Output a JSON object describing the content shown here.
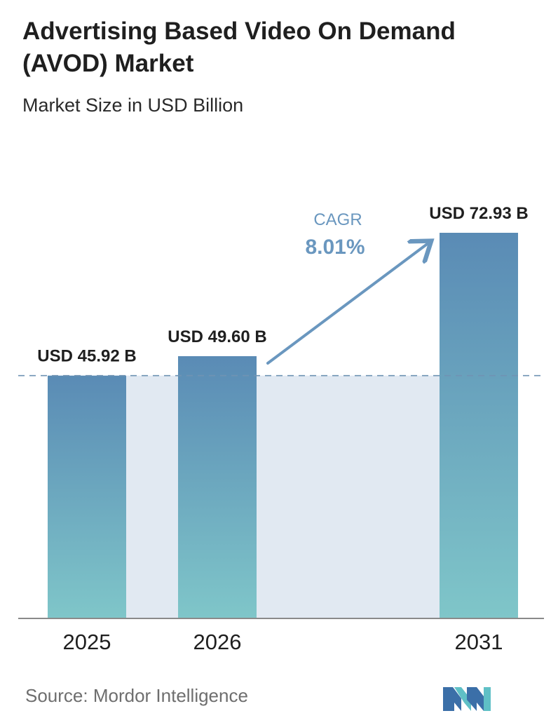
{
  "title": "Advertising Based Video On Demand (AVOD) Market",
  "subtitle": "Market Size in USD Billion",
  "source": "Source:  Mordor Intelligence",
  "logo": {
    "icon": "mordor-intelligence-logo-icon",
    "colors": [
      "#3b6fa8",
      "#5fc0c6"
    ]
  },
  "chart_data": {
    "type": "bar",
    "categories": [
      "2025",
      "2026",
      "2031"
    ],
    "values": [
      45.92,
      49.6,
      72.93
    ],
    "value_labels": [
      "USD 45.92 B",
      "USD 49.60 B",
      "USD 72.93 B"
    ],
    "ylim": [
      0,
      72.93
    ],
    "annotation": {
      "label": "CAGR",
      "value": "8.01%"
    },
    "colors": {
      "bar_top": "#5a8bb5",
      "bar_bottom": "#7fc6c9",
      "shade": "#e1e9f2",
      "reference_line": "#6f93b3",
      "arrow": "#6a97bf",
      "cagr_text": "#6a97bf"
    }
  }
}
